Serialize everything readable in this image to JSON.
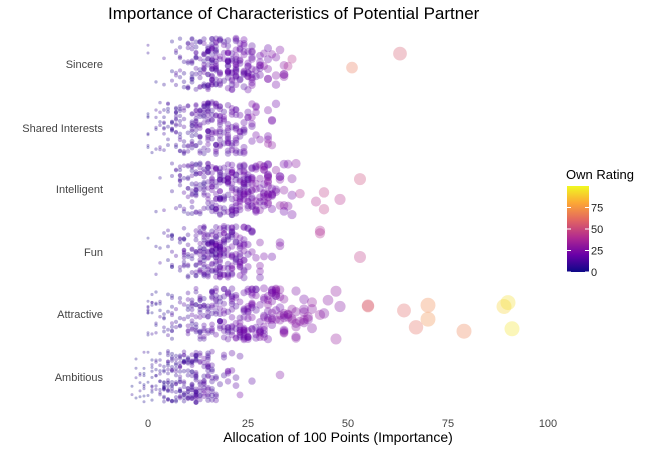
{
  "chart_data": {
    "type": "scatter",
    "title": "Importance of Characteristics of Potential Partner",
    "xlabel": "Allocation of 100 Points (Importance)",
    "ylabel": "",
    "xlim": [
      -5,
      100
    ],
    "x_ticks": [
      0,
      25,
      50,
      75,
      100
    ],
    "categories": [
      "Sincere",
      "Shared Interests",
      "Intelligent",
      "Fun",
      "Attractive",
      "Ambitious"
    ],
    "jitter": "vertical within category band",
    "point_size": "proportional to allocated points",
    "color_scale": {
      "legend_title": "Own Rating",
      "range": [
        0,
        100
      ],
      "ticks": [
        0,
        25,
        50,
        75
      ],
      "stops": [
        "#0d0887",
        "#6a00a8",
        "#b12a90",
        "#e16462",
        "#fca636",
        "#f0f921"
      ]
    },
    "series": [
      {
        "category": "Sincere",
        "x_min": 0,
        "x_max": 34,
        "center": 18,
        "spread": 7,
        "n": 260,
        "outliers": [
          {
            "x": 51,
            "own": 65
          },
          {
            "x": 63,
            "own": 55
          },
          {
            "x": 35,
            "own": 38
          },
          {
            "x": 36,
            "own": 42
          }
        ]
      },
      {
        "category": "Shared Interests",
        "x_min": 0,
        "x_max": 32,
        "center": 13,
        "spread": 7,
        "n": 260,
        "outliers": [
          {
            "x": 30,
            "own": 30
          },
          {
            "x": 31,
            "own": 28
          }
        ]
      },
      {
        "category": "Intelligent",
        "x_min": 0,
        "x_max": 40,
        "center": 20,
        "spread": 7,
        "n": 300,
        "outliers": [
          {
            "x": 53,
            "own": 50
          },
          {
            "x": 44,
            "own": 45
          },
          {
            "x": 44,
            "own": 45
          },
          {
            "x": 48,
            "own": 42
          },
          {
            "x": 42,
            "own": 40
          },
          {
            "x": 38,
            "own": 38
          }
        ]
      },
      {
        "category": "Fun",
        "x_min": 0,
        "x_max": 34,
        "center": 17,
        "spread": 6,
        "n": 270,
        "outliers": [
          {
            "x": 53,
            "own": 45
          },
          {
            "x": 43,
            "own": 38
          },
          {
            "x": 43,
            "own": 40
          }
        ]
      },
      {
        "category": "Attractive",
        "x_min": 0,
        "x_max": 56,
        "center": 21,
        "spread": 11,
        "n": 320,
        "outliers": [
          {
            "x": 89,
            "own": 90
          },
          {
            "x": 90,
            "own": 93
          },
          {
            "x": 91,
            "own": 95
          },
          {
            "x": 70,
            "own": 72
          },
          {
            "x": 70,
            "own": 70
          },
          {
            "x": 79,
            "own": 68
          },
          {
            "x": 67,
            "own": 62
          },
          {
            "x": 64,
            "own": 60
          },
          {
            "x": 55,
            "own": 55
          },
          {
            "x": 55,
            "own": 58
          }
        ]
      },
      {
        "category": "Ambitious",
        "x_min": -4,
        "x_max": 29,
        "center": 9,
        "spread": 6,
        "n": 280,
        "outliers": [
          {
            "x": 33,
            "own": 25
          }
        ]
      }
    ]
  }
}
